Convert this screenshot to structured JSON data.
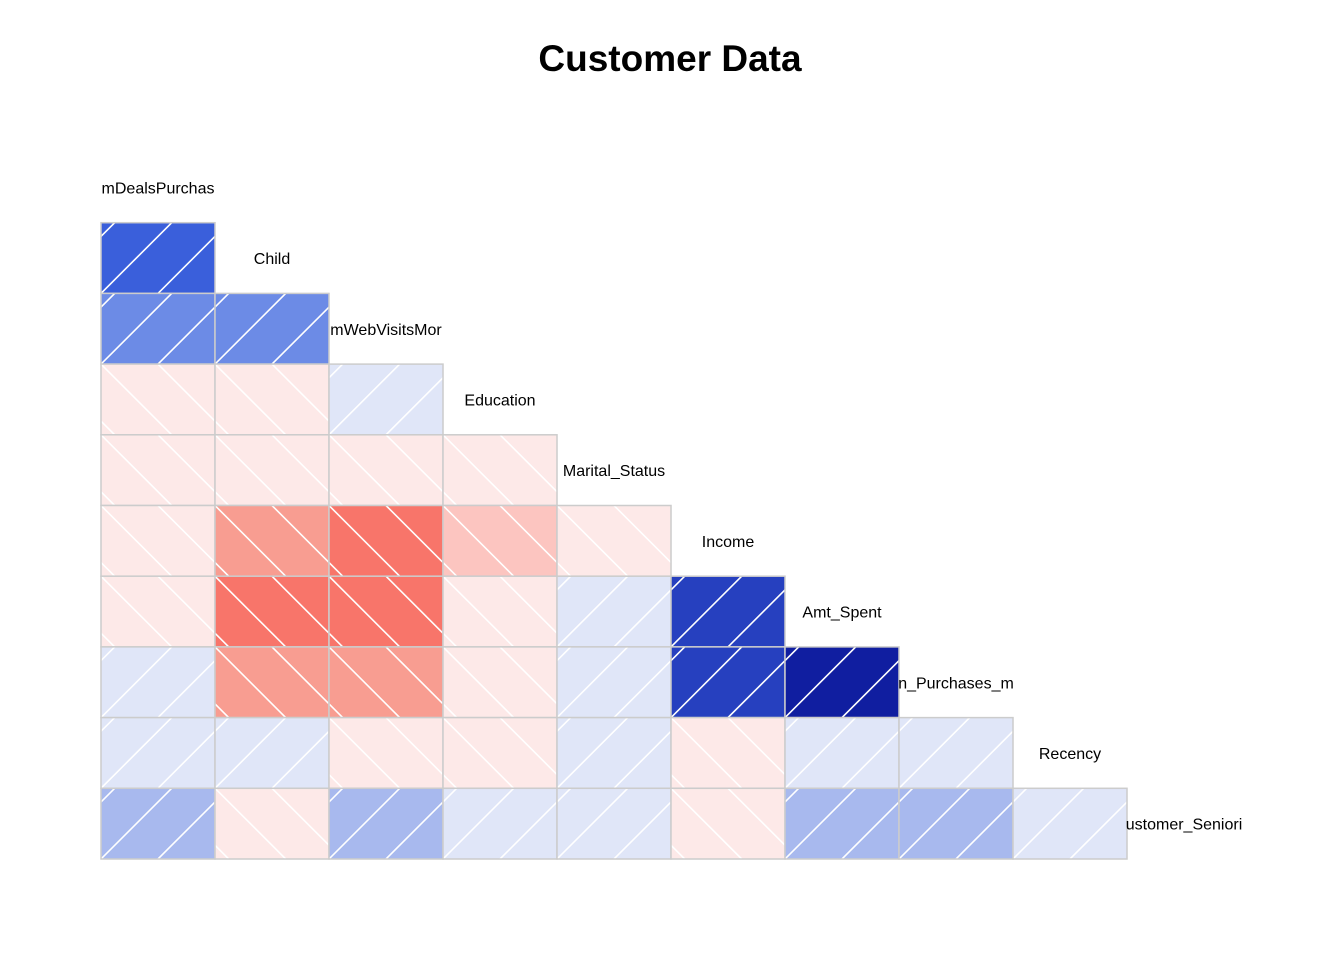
{
  "chart_data": {
    "type": "heatmap",
    "title": "Customer Data",
    "subtype": "lower-triangular correlation matrix (corrgram, shaded panels)",
    "variables": [
      "NumDealsPurchases",
      "Child",
      "NumWebVisitsMonth",
      "Education",
      "Marital_Status",
      "Income",
      "Amt_Spent",
      "Num_Purchases_made",
      "Recency",
      "Customer_Seniority"
    ],
    "labels_shown": [
      "mDealsPurchas",
      "Child",
      "mWebVisitsMor",
      "Education",
      "Marital_Status",
      "Income",
      "Amt_Spent",
      "n_Purchases_m",
      "Recency",
      "ustomer_Seniori"
    ],
    "correlations": [
      [
        0.78
      ],
      [
        0.55,
        0.55
      ],
      [
        -0.05,
        -0.05,
        0.05
      ],
      [
        -0.05,
        -0.05,
        -0.05,
        -0.05
      ],
      [
        -0.05,
        -0.4,
        -0.55,
        -0.25,
        -0.05
      ],
      [
        -0.05,
        -0.55,
        -0.55,
        -0.05,
        0.05,
        0.85
      ],
      [
        0.05,
        -0.4,
        -0.4,
        -0.05,
        0.05,
        0.85,
        0.95
      ],
      [
        0.05,
        0.05,
        -0.05,
        -0.05,
        0.05,
        -0.05,
        0.05,
        0.05
      ],
      [
        0.3,
        -0.05,
        0.3,
        0.05,
        0.05,
        -0.05,
        0.3,
        0.3,
        0.05
      ]
    ],
    "value_range": [
      -1,
      1
    ],
    "colors": {
      "strong_negative": "#f8756a",
      "weak_negative": "#fde9e8",
      "neutral": "#ffffff",
      "weak_positive": "#e0e6f8",
      "strong_positive": "#101ea0",
      "cell_border": "#cccccc",
      "hatch": "#ffffff"
    },
    "hatch_direction": "positive = /, negative = \\",
    "grid": true
  }
}
